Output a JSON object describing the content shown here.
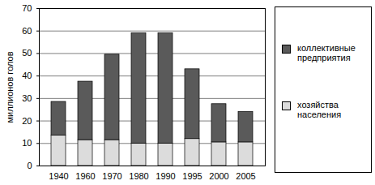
{
  "chart_data": {
    "type": "bar",
    "stacked": true,
    "grid": true,
    "legend": "right",
    "ylabel": "миллионов голов",
    "categories": [
      "1940",
      "1960",
      "1970",
      "1980",
      "1990",
      "1995",
      "2000",
      "2005"
    ],
    "series": [
      {
        "name": "коллективные предприятия",
        "color": "#5a5a5a",
        "values": [
          15,
          26,
          38,
          49,
          49,
          31,
          17,
          13.5
        ]
      },
      {
        "name": "хозяйства населения",
        "color": "#dcdcdc",
        "values": [
          13.5,
          11.5,
          11.5,
          10,
          10,
          12,
          10.5,
          10.5
        ]
      }
    ],
    "ylim": [
      0,
      70
    ],
    "yticks": [
      0,
      10,
      20,
      30,
      40,
      50,
      60,
      70
    ]
  }
}
